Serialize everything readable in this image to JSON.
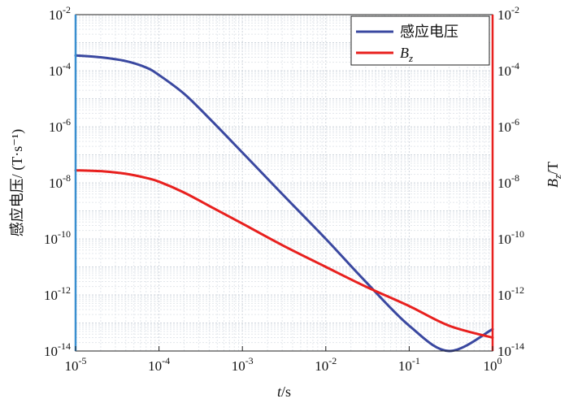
{
  "chart_data": {
    "type": "line",
    "x_scale": "log",
    "y_scale": "log",
    "grid": true,
    "legend_position": "top-right",
    "xlabel": {
      "italic": "t",
      "rest": "/s"
    },
    "ylabel_left": "感应电压/ (T·s⁻¹)",
    "ylabel_right": {
      "italic_base": "B",
      "italic_sub": "z",
      "rest": "/T"
    },
    "xlim": [
      1e-05,
      1
    ],
    "ylim_left": [
      1e-14,
      0.01
    ],
    "ylim_right": [
      1e-14,
      0.01
    ],
    "x_ticks": [
      {
        "base": "10",
        "exp": "-5"
      },
      {
        "base": "10",
        "exp": "-4"
      },
      {
        "base": "10",
        "exp": "-3"
      },
      {
        "base": "10",
        "exp": "-2"
      },
      {
        "base": "10",
        "exp": "-1"
      },
      {
        "base": "10",
        "exp": "0"
      }
    ],
    "y_ticks_left": [
      {
        "base": "10",
        "exp": "-2"
      },
      {
        "base": "10",
        "exp": "-4"
      },
      {
        "base": "10",
        "exp": "-6"
      },
      {
        "base": "10",
        "exp": "-8"
      },
      {
        "base": "10",
        "exp": "-10"
      },
      {
        "base": "10",
        "exp": "-12"
      },
      {
        "base": "10",
        "exp": "-14"
      }
    ],
    "y_ticks_right": [
      {
        "base": "10",
        "exp": "-2"
      },
      {
        "base": "10",
        "exp": "-4"
      },
      {
        "base": "10",
        "exp": "-6"
      },
      {
        "base": "10",
        "exp": "-8"
      },
      {
        "base": "10",
        "exp": "-10"
      },
      {
        "base": "10",
        "exp": "-12"
      },
      {
        "base": "10",
        "exp": "-14"
      }
    ],
    "series": [
      {
        "name": "感应电压",
        "axis": "left",
        "color": "#3a48a0",
        "x": [
          1e-05,
          2e-05,
          4e-05,
          7e-05,
          0.0001,
          0.0002,
          0.0004,
          0.001,
          0.003,
          0.01,
          0.03,
          0.1,
          0.3,
          1
        ],
        "y": [
          0.00035,
          0.0003,
          0.00022,
          0.00013,
          7e-05,
          1.5e-05,
          2e-06,
          1.2e-07,
          4e-09,
          1e-10,
          3e-12,
          8e-14,
          2.5e-15,
          6e-14
        ]
      },
      {
        "name_base": "B",
        "name_sub": "z",
        "axis": "right",
        "color": "#e8201e",
        "x": [
          1e-05,
          2e-05,
          4e-05,
          7e-05,
          0.0001,
          0.0002,
          0.0004,
          0.001,
          0.003,
          0.01,
          0.03,
          0.1,
          0.3,
          1
        ],
        "y": [
          2.8e-08,
          2.6e-08,
          2.1e-08,
          1.5e-08,
          1.1e-08,
          4.5e-09,
          1.5e-09,
          3.5e-10,
          6e-11,
          1e-11,
          2e-12,
          4e-13,
          8e-14,
          3e-14
        ]
      }
    ]
  }
}
